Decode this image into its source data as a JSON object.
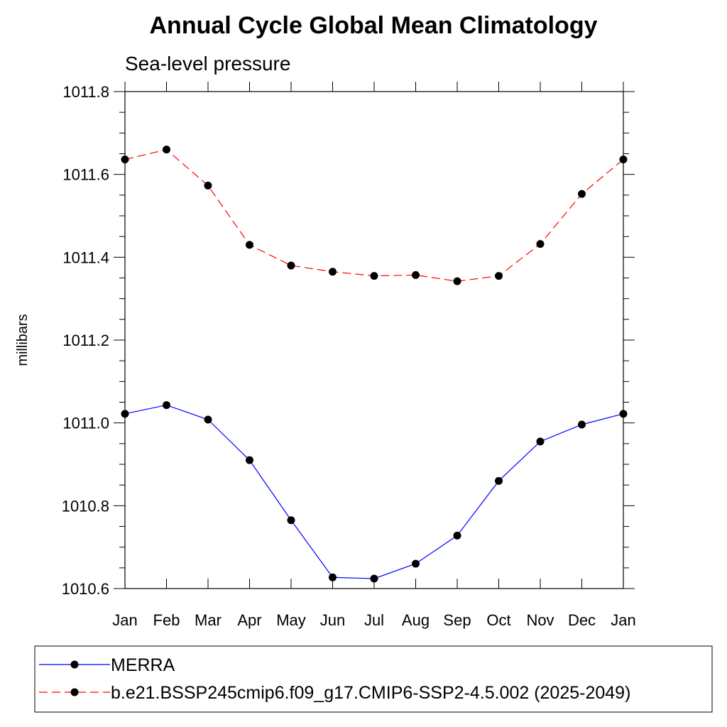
{
  "chart_data": {
    "type": "line",
    "title": "Annual Cycle Global Mean Climatology",
    "subtitle": "Sea-level pressure",
    "xlabel": "",
    "ylabel": "millibars",
    "categories": [
      "Jan",
      "Feb",
      "Mar",
      "Apr",
      "May",
      "Jun",
      "Jul",
      "Aug",
      "Sep",
      "Oct",
      "Nov",
      "Dec",
      "Jan"
    ],
    "ylim": [
      1010.6,
      1011.8
    ],
    "yticks": [
      "1010.6",
      "1010.8",
      "1011.0",
      "1011.2",
      "1011.4",
      "1011.6",
      "1011.8"
    ],
    "grid": false,
    "legend_position": "bottom",
    "series": [
      {
        "name": "MERRA",
        "color": "#0000ff",
        "line_style": "solid",
        "values": [
          1011.022,
          1011.043,
          1011.008,
          1010.91,
          1010.765,
          1010.627,
          1010.624,
          1010.66,
          1010.728,
          1010.86,
          1010.955,
          1010.996,
          1011.022
        ]
      },
      {
        "name": "b.e21.BSSP245cmip6.f09_g17.CMIP6-SSP2-4.5.002 (2025-2049)",
        "color": "#ff0000",
        "line_style": "dashed",
        "values": [
          1011.636,
          1011.66,
          1011.573,
          1011.43,
          1011.38,
          1011.365,
          1011.355,
          1011.357,
          1011.342,
          1011.355,
          1011.432,
          1011.553,
          1011.636
        ]
      }
    ]
  }
}
